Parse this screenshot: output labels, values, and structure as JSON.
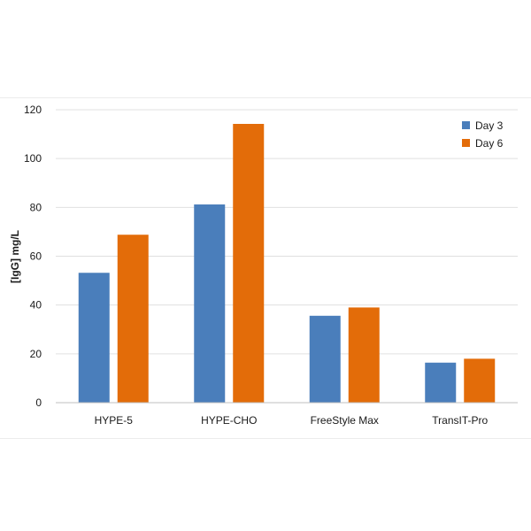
{
  "chart_data": {
    "type": "bar",
    "title": "",
    "xlabel": "",
    "ylabel": "[IgG] mg/L",
    "categories": [
      "HYPE-5",
      "HYPE-CHO",
      "FreeStyle Max",
      "TransIT-Pro"
    ],
    "series": [
      {
        "name": "Day 3",
        "values": [
          53.2,
          81.2,
          35.6,
          16.4
        ]
      },
      {
        "name": "Day 6",
        "values": [
          68.8,
          114.2,
          39.0,
          18.0
        ]
      }
    ],
    "ylim": [
      0,
      120
    ],
    "yticks": [
      "0",
      "20",
      "40",
      "60",
      "80",
      "100",
      "120"
    ],
    "grid": true,
    "legend_position": "top-right",
    "colors": {
      "series": [
        "#4a7ebb",
        "#e36c09"
      ],
      "grid": "#e0e0e0",
      "axis": "#bfbfbf"
    }
  }
}
